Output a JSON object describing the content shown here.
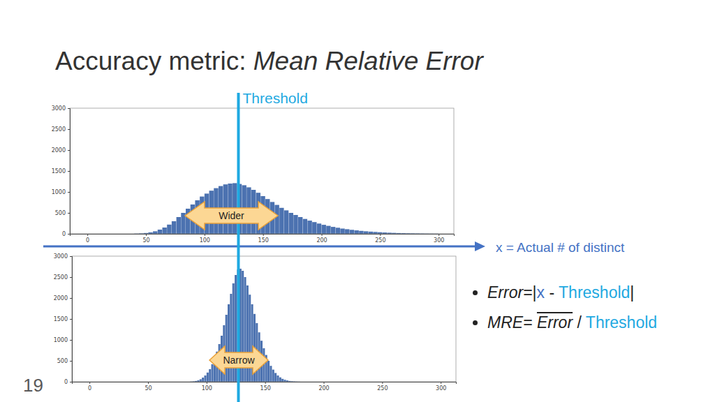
{
  "slide": {
    "title": [
      {
        "text": "Accuracy metric: "
      },
      {
        "text": "Mean Relative Error",
        "italic": true
      }
    ],
    "page_number": "19",
    "threshold": {
      "label": "Threshold",
      "value": 129,
      "color": "#1fa9e1"
    },
    "x_axis_label": {
      "text": "x = Actual # of distinct",
      "color": "#4472c4"
    },
    "bullets": [
      [
        {
          "text": "Error=",
          "italic": true
        },
        {
          "text": "|"
        },
        {
          "text": "x",
          "color": "#4472c4"
        },
        {
          "text": " - "
        },
        {
          "text": "Threshold",
          "color": "#1fa9e1"
        },
        {
          "text": "|"
        }
      ],
      [
        {
          "text": "MRE= ",
          "italic": true
        },
        {
          "text": "Error",
          "italic": true,
          "overline": true
        },
        {
          "text": " / "
        },
        {
          "text": "Threshold",
          "color": "#1fa9e1"
        }
      ]
    ]
  },
  "chart_data": [
    {
      "type": "histogram",
      "bins": [
        40,
        44,
        48,
        52,
        56,
        60,
        64,
        68,
        72,
        76,
        80,
        84,
        88,
        92,
        96,
        100,
        104,
        108,
        112,
        116,
        120,
        124,
        128,
        132,
        136,
        140,
        144,
        148,
        152,
        156,
        160,
        164,
        168,
        172,
        176,
        180,
        184,
        188,
        192,
        196,
        200,
        204,
        208,
        212,
        216,
        220,
        224,
        228,
        232,
        236,
        240,
        244,
        248,
        252,
        256,
        260,
        264,
        268,
        272,
        276,
        280,
        284,
        288,
        292,
        296,
        300
      ],
      "values": [
        5,
        10,
        20,
        35,
        60,
        100,
        150,
        220,
        300,
        400,
        500,
        600,
        700,
        800,
        890,
        960,
        1030,
        1090,
        1140,
        1180,
        1200,
        1210,
        1190,
        1160,
        1110,
        1050,
        980,
        900,
        830,
        760,
        690,
        620,
        560,
        500,
        450,
        400,
        355,
        315,
        280,
        245,
        215,
        190,
        165,
        145,
        125,
        110,
        95,
        82,
        70,
        60,
        52,
        45,
        38,
        32,
        27,
        23,
        19,
        16,
        13,
        11,
        9,
        7,
        5,
        4,
        3
      ],
      "color": "#4c72b0",
      "xlim": [
        -15,
        313
      ],
      "ylim": [
        0,
        3000
      ],
      "xticks": [
        0,
        50,
        100,
        150,
        200,
        250,
        300
      ],
      "yticks": [
        0,
        500,
        1000,
        1500,
        2000,
        2500,
        3000
      ],
      "annotations": [
        "Wider"
      ]
    },
    {
      "type": "histogram",
      "bins": [
        86,
        88,
        90,
        92,
        94,
        96,
        98,
        100,
        102,
        104,
        106,
        108,
        110,
        112,
        114,
        116,
        118,
        120,
        122,
        124,
        126,
        128,
        130,
        132,
        134,
        136,
        138,
        140,
        142,
        144,
        146,
        148,
        150,
        152,
        154,
        156,
        158,
        160,
        162,
        164,
        166,
        168,
        170,
        172,
        174,
        176,
        178,
        180
      ],
      "values": [
        5,
        10,
        20,
        35,
        60,
        100,
        150,
        220,
        300,
        420,
        560,
        720,
        900,
        1100,
        1350,
        1600,
        1850,
        2100,
        2350,
        2550,
        2680,
        2700,
        2650,
        2500,
        2300,
        2080,
        1850,
        1620,
        1400,
        1180,
        980,
        800,
        640,
        500,
        380,
        290,
        210,
        150,
        105,
        70,
        48,
        32,
        20,
        13,
        8,
        5,
        3
      ],
      "color": "#4c72b0",
      "xlim": [
        -15,
        313
      ],
      "ylim": [
        0,
        3000
      ],
      "xticks": [
        0,
        50,
        100,
        150,
        200,
        250,
        300
      ],
      "yticks": [
        0,
        500,
        1000,
        1500,
        2000,
        2500,
        3000
      ],
      "annotations": [
        "Narrow"
      ]
    }
  ]
}
